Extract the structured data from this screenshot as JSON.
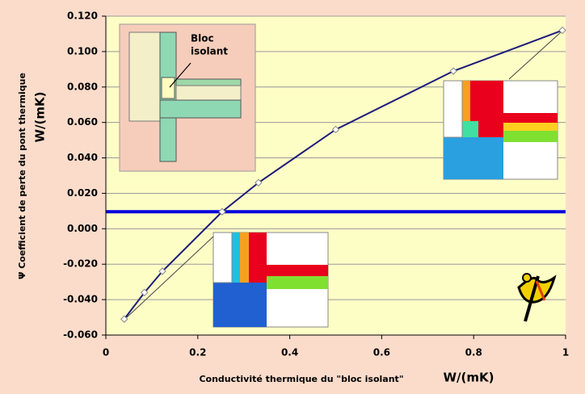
{
  "chart_data": {
    "type": "line",
    "y_title": "Ψ Coefficient de perte du pont thermique",
    "y_unit": "W/(mK)",
    "x_title": "Conductivité thermique du \"bloc isolant\"",
    "x_unit": "W/(mK)",
    "annotations": [
      "Bloc",
      "isolant"
    ],
    "x": [
      0.04,
      0.084,
      0.123,
      0.253,
      0.332,
      0.5,
      0.756,
      0.993
    ],
    "series": [
      {
        "color": "#1c1c7a",
        "values": [
          -0.051,
          -0.036,
          -0.024,
          0.0096,
          0.026,
          0.056,
          0.089,
          0.112
        ]
      }
    ],
    "reference_y": 0.0096,
    "reference_color": "#0000dd",
    "xlim": [
      0,
      1
    ],
    "ylim": [
      -0.06,
      0.12
    ],
    "xticks": [
      0,
      0.2,
      0.4,
      0.6,
      0.8,
      1
    ],
    "yticks": [
      {
        "value": 0.12,
        "label": "0.120"
      },
      {
        "value": 0.1,
        "label": "0.100"
      },
      {
        "value": 0.08,
        "label": "0.080"
      },
      {
        "value": 0.06,
        "label": "0.060"
      },
      {
        "value": 0.04,
        "label": "0.040"
      },
      {
        "value": 0.02,
        "label": "0.020"
      },
      {
        "value": 0,
        "label": "0.000"
      },
      {
        "value": -0.02,
        "label": "-0.020"
      },
      {
        "value": -0.04,
        "label": "-0.040"
      },
      {
        "value": -0.06,
        "label": "-0.060"
      }
    ],
    "grid": true
  }
}
